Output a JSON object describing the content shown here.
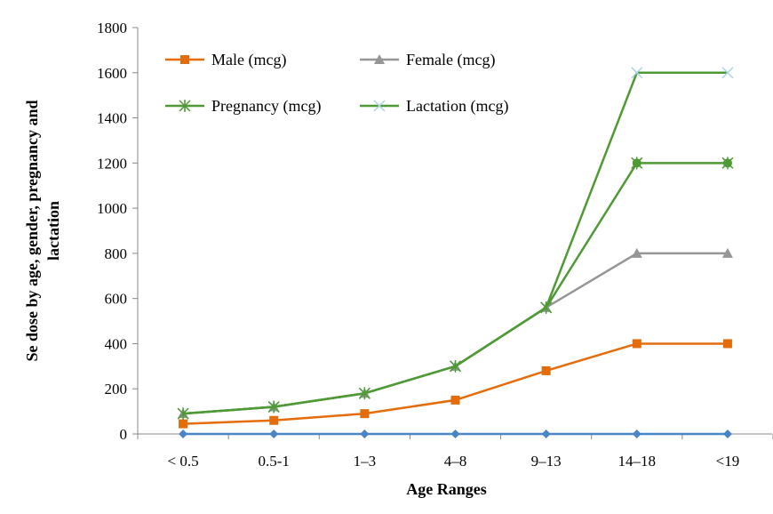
{
  "chart_data": {
    "type": "line",
    "title": "",
    "xlabel": "Age Ranges",
    "ylabel": "Se dose by age, gender, pregnancy and lactation",
    "categories": [
      "< 0.5",
      "0.5-1",
      "1–3",
      "4–8",
      "9–13",
      "14–18",
      "<19"
    ],
    "ylim": [
      0,
      1800
    ],
    "yticks": [
      0,
      200,
      400,
      600,
      800,
      1000,
      1200,
      1400,
      1600,
      1800
    ],
    "grid": false,
    "legend_position": "top-left",
    "series": [
      {
        "name": "Male (mcg)",
        "values": [
          45,
          60,
          90,
          150,
          280,
          400,
          400
        ],
        "color": "#E46C0A",
        "marker": "square",
        "in_legend": true
      },
      {
        "name": "Female (mcg)",
        "values": [
          90,
          120,
          180,
          300,
          560,
          800,
          800
        ],
        "color": "#969696",
        "marker": "triangle",
        "in_legend": true
      },
      {
        "name": "Pregnancy (mcg)",
        "values": [
          90,
          120,
          180,
          300,
          560,
          1200,
          1200
        ],
        "color": "#4E9A35",
        "marker": "star",
        "in_legend": true
      },
      {
        "name": "Lactation (mcg)",
        "values": [
          90,
          120,
          180,
          300,
          560,
          1600,
          1600
        ],
        "color": "#4E9A35",
        "marker": "x",
        "marker_color": "#A9D4E3",
        "in_legend": true
      },
      {
        "name": "",
        "values": [
          0,
          0,
          0,
          0,
          0,
          0,
          0
        ],
        "color": "#4A86C5",
        "marker": "diamond",
        "in_legend": false
      }
    ]
  }
}
